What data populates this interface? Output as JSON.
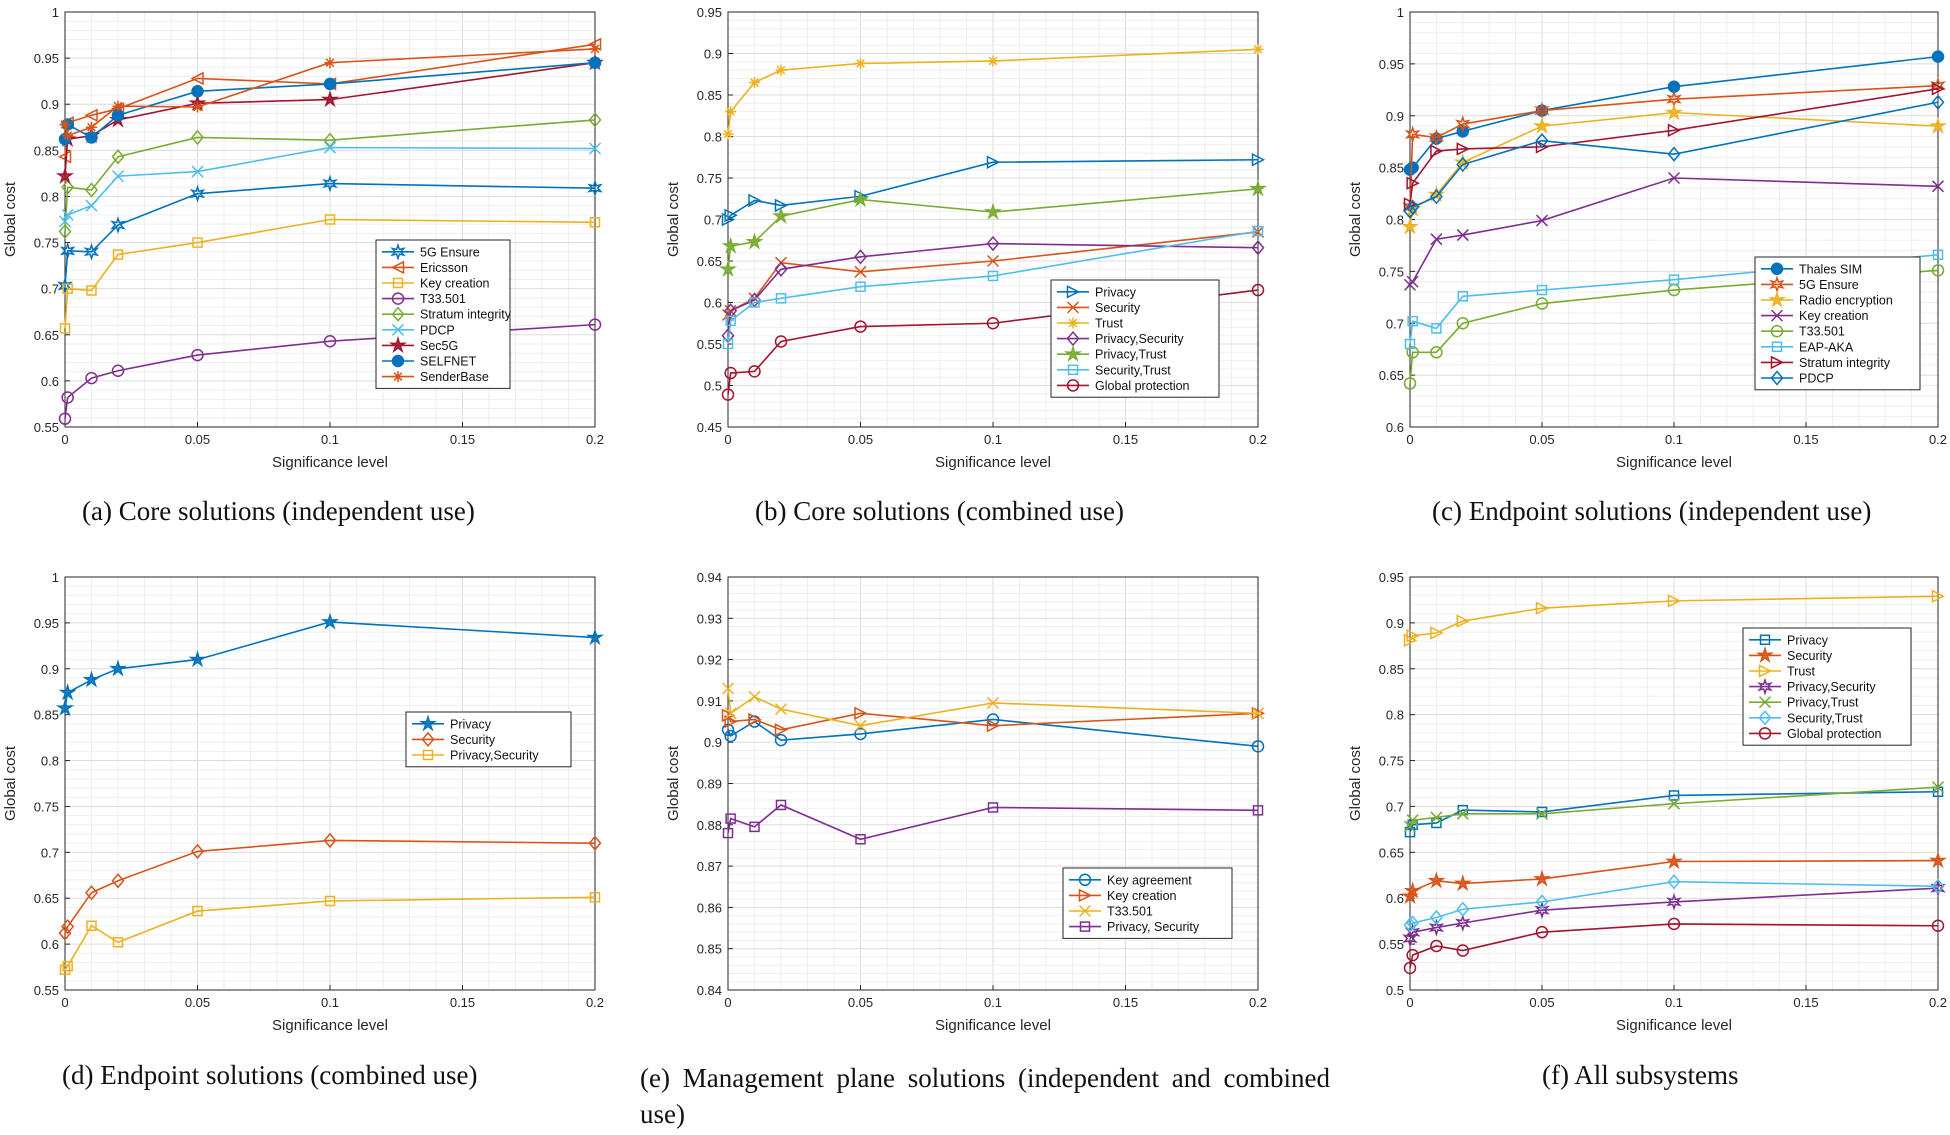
{
  "x_axis": {
    "label": "Significance level",
    "ticks": [
      0,
      0.05,
      0.1,
      0.15,
      0.2
    ],
    "tick_labels": [
      "0",
      "0.05",
      "0.1",
      "0.15",
      "0.2"
    ]
  },
  "y_axis_label": "Global cost",
  "colors": {
    "blue": "#0072BD",
    "orange": "#D95319",
    "yellow": "#EDB120",
    "purple": "#7E2F8E",
    "green": "#77AC30",
    "cyan": "#4DBEEE",
    "red": "#A2142F"
  },
  "chart_data": [
    {
      "type": "line",
      "caption": "(a) Core solutions (independent use)",
      "ylim": [
        0.55,
        1
      ],
      "yticks": [
        0.55,
        0.6,
        0.65,
        0.7,
        0.75,
        0.8,
        0.85,
        0.9,
        0.95,
        1
      ],
      "ytick_labels": [
        "0.55",
        "0.6",
        "0.65",
        "0.7",
        "0.75",
        "0.8",
        "0.85",
        "0.9",
        "0.95",
        "1"
      ],
      "x": [
        0,
        0.001,
        0.01,
        0.02,
        0.05,
        0.1,
        0.2
      ],
      "series": [
        {
          "name": "5G Ensure",
          "color": "blue",
          "marker": "star6",
          "values": [
            0.703,
            0.741,
            0.74,
            0.769,
            0.803,
            0.814,
            0.809
          ]
        },
        {
          "name": "Ericsson",
          "color": "orange",
          "marker": "triangle-left",
          "values": [
            0.843,
            0.88,
            0.888,
            0.895,
            0.928,
            0.922,
            0.965
          ]
        },
        {
          "name": "Key creation",
          "color": "yellow",
          "marker": "square",
          "values": [
            0.657,
            0.7,
            0.698,
            0.737,
            0.75,
            0.775,
            0.772
          ]
        },
        {
          "name": "T33.501",
          "color": "purple",
          "marker": "circle",
          "values": [
            0.559,
            0.582,
            0.603,
            0.611,
            0.628,
            0.643,
            0.661
          ]
        },
        {
          "name": "Stratum integrity",
          "color": "green",
          "marker": "diamond",
          "values": [
            0.762,
            0.81,
            0.807,
            0.843,
            0.864,
            0.861,
            0.883
          ]
        },
        {
          "name": "PDCP",
          "color": "cyan",
          "marker": "x",
          "values": [
            0.773,
            0.78,
            0.79,
            0.822,
            0.827,
            0.853,
            0.852
          ]
        },
        {
          "name": "Sec5G",
          "color": "red",
          "marker": "star5",
          "values": [
            0.822,
            0.862,
            0.866,
            0.883,
            0.901,
            0.905,
            0.945
          ]
        },
        {
          "name": "SELFNET",
          "color": "blue",
          "marker": "dot",
          "values": [
            0.862,
            0.878,
            0.864,
            0.888,
            0.914,
            0.922,
            0.945
          ]
        },
        {
          "name": "SenderBase",
          "color": "orange",
          "marker": "asterisk",
          "values": [
            0.878,
            0.866,
            0.875,
            0.898,
            0.897,
            0.945,
            0.96
          ]
        }
      ]
    },
    {
      "type": "line",
      "caption": "(b) Core solutions (combined use)",
      "ylim": [
        0.45,
        0.95
      ],
      "yticks": [
        0.45,
        0.5,
        0.55,
        0.6,
        0.65,
        0.7,
        0.75,
        0.8,
        0.85,
        0.9,
        0.95
      ],
      "ytick_labels": [
        "0.45",
        "0.5",
        "0.55",
        "0.6",
        "0.65",
        "0.7",
        "0.75",
        "0.8",
        "0.85",
        "0.9",
        "0.95"
      ],
      "x": [
        0,
        0.001,
        0.01,
        0.02,
        0.05,
        0.1,
        0.2
      ],
      "series": [
        {
          "name": "Privacy",
          "color": "blue",
          "marker": "triangle-right",
          "values": [
            0.7,
            0.705,
            0.723,
            0.717,
            0.728,
            0.769,
            0.772
          ]
        },
        {
          "name": "Security",
          "color": "orange",
          "marker": "x",
          "values": [
            0.585,
            0.59,
            0.605,
            0.648,
            0.637,
            0.65,
            0.685
          ]
        },
        {
          "name": "Trust",
          "color": "yellow",
          "marker": "asterisk",
          "values": [
            0.803,
            0.83,
            0.865,
            0.88,
            0.888,
            0.891,
            0.905
          ]
        },
        {
          "name": "Privacy,Security",
          "color": "purple",
          "marker": "diamond",
          "values": [
            0.56,
            0.59,
            0.603,
            0.64,
            0.655,
            0.671,
            0.666
          ]
        },
        {
          "name": "Privacy,Trust",
          "color": "green",
          "marker": "star5",
          "values": [
            0.64,
            0.668,
            0.673,
            0.704,
            0.724,
            0.709,
            0.737
          ]
        },
        {
          "name": "Security,Trust",
          "color": "cyan",
          "marker": "square",
          "values": [
            0.55,
            0.578,
            0.6,
            0.605,
            0.619,
            0.632,
            0.686
          ]
        },
        {
          "name": "Global protection",
          "color": "red",
          "marker": "circle",
          "values": [
            0.489,
            0.515,
            0.517,
            0.553,
            0.571,
            0.575,
            0.615
          ]
        }
      ]
    },
    {
      "type": "line",
      "caption": "(c) Endpoint solutions (independent use)",
      "ylim": [
        0.6,
        1
      ],
      "yticks": [
        0.6,
        0.65,
        0.7,
        0.75,
        0.8,
        0.85,
        0.9,
        0.95,
        1
      ],
      "ytick_labels": [
        "0.6",
        "0.65",
        "0.7",
        "0.75",
        "0.8",
        "0.85",
        "0.9",
        "0.95",
        "1"
      ],
      "x": [
        0,
        0.001,
        0.01,
        0.02,
        0.05,
        0.1,
        0.2
      ],
      "series": [
        {
          "name": "Thales SIM",
          "color": "blue",
          "marker": "dot",
          "values": [
            0.848,
            0.85,
            0.878,
            0.885,
            0.905,
            0.928,
            0.957
          ]
        },
        {
          "name": "5G Ensure",
          "color": "orange",
          "marker": "star6",
          "values": [
            0.812,
            0.882,
            0.879,
            0.892,
            0.905,
            0.916,
            0.929
          ]
        },
        {
          "name": "Radio encryption",
          "color": "yellow",
          "marker": "star5",
          "values": [
            0.793,
            0.81,
            0.824,
            0.855,
            0.89,
            0.903,
            0.89
          ]
        },
        {
          "name": "Key creation",
          "color": "purple",
          "marker": "x",
          "values": [
            0.737,
            0.74,
            0.781,
            0.785,
            0.799,
            0.84,
            0.832
          ]
        },
        {
          "name": "T33.501",
          "color": "green",
          "marker": "circle",
          "values": [
            0.642,
            0.672,
            0.672,
            0.7,
            0.719,
            0.732,
            0.751
          ]
        },
        {
          "name": "EAP-AKA",
          "color": "cyan",
          "marker": "square",
          "values": [
            0.68,
            0.702,
            0.695,
            0.726,
            0.732,
            0.742,
            0.766
          ]
        },
        {
          "name": "Stratum integrity",
          "color": "red",
          "marker": "triangle-right",
          "values": [
            0.815,
            0.835,
            0.866,
            0.868,
            0.87,
            0.886,
            0.926
          ]
        },
        {
          "name": "PDCP",
          "color": "blue",
          "marker": "diamond",
          "values": [
            0.808,
            0.812,
            0.822,
            0.853,
            0.876,
            0.863,
            0.913
          ]
        }
      ]
    },
    {
      "type": "line",
      "caption": "(d) Endpoint solutions (combined use)",
      "ylim": [
        0.55,
        1
      ],
      "yticks": [
        0.55,
        0.6,
        0.65,
        0.7,
        0.75,
        0.8,
        0.85,
        0.9,
        0.95,
        1
      ],
      "ytick_labels": [
        "0.55",
        "0.6",
        "0.65",
        "0.7",
        "0.75",
        "0.8",
        "0.85",
        "0.9",
        "0.95",
        "1"
      ],
      "x": [
        0,
        0.001,
        0.01,
        0.02,
        0.05,
        0.1,
        0.2
      ],
      "series": [
        {
          "name": "Privacy",
          "color": "blue",
          "marker": "star5",
          "values": [
            0.857,
            0.874,
            0.888,
            0.9,
            0.91,
            0.951,
            0.934
          ]
        },
        {
          "name": "Security",
          "color": "orange",
          "marker": "diamond",
          "values": [
            0.612,
            0.619,
            0.656,
            0.669,
            0.701,
            0.713,
            0.71
          ]
        },
        {
          "name": "Privacy,Security",
          "color": "yellow",
          "marker": "square",
          "values": [
            0.572,
            0.576,
            0.62,
            0.602,
            0.636,
            0.647,
            0.651
          ]
        }
      ]
    },
    {
      "type": "line",
      "caption": "(e) Management plane solutions (independent and combined use)",
      "ylim": [
        0.84,
        0.94
      ],
      "yticks": [
        0.84,
        0.85,
        0.86,
        0.87,
        0.88,
        0.89,
        0.9,
        0.91,
        0.92,
        0.93,
        0.94
      ],
      "ytick_labels": [
        "0.84",
        "0.85",
        "0.86",
        "0.87",
        "0.88",
        "0.89",
        "0.9",
        "0.91",
        "0.92",
        "0.93",
        "0.94"
      ],
      "x": [
        0,
        0.001,
        0.01,
        0.02,
        0.05,
        0.1,
        0.2
      ],
      "series": [
        {
          "name": "Key agreement",
          "color": "blue",
          "marker": "circle",
          "values": [
            0.903,
            0.9015,
            0.905,
            0.9005,
            0.902,
            0.9055,
            0.899
          ]
        },
        {
          "name": "Key creation",
          "color": "orange",
          "marker": "triangle-right",
          "values": [
            0.9065,
            0.905,
            0.9055,
            0.903,
            0.907,
            0.904,
            0.907
          ]
        },
        {
          "name": "T33.501",
          "color": "yellow",
          "marker": "x",
          "values": [
            0.913,
            0.907,
            0.911,
            0.908,
            0.904,
            0.9095,
            0.907
          ]
        },
        {
          "name": "Privacy, Security",
          "color": "purple",
          "marker": "square",
          "values": [
            0.878,
            0.8815,
            0.8795,
            0.8848,
            0.8765,
            0.8842,
            0.8835
          ]
        }
      ]
    },
    {
      "type": "line",
      "caption": "(f) All subsystems",
      "ylim": [
        0.5,
        0.95
      ],
      "yticks": [
        0.5,
        0.55,
        0.6,
        0.65,
        0.7,
        0.75,
        0.8,
        0.85,
        0.9,
        0.95
      ],
      "ytick_labels": [
        "0.5",
        "0.55",
        "0.6",
        "0.65",
        "0.7",
        "0.75",
        "0.8",
        "0.85",
        "0.9",
        "0.95"
      ],
      "x": [
        0,
        0.001,
        0.01,
        0.02,
        0.05,
        0.1,
        0.2
      ],
      "series": [
        {
          "name": "Privacy",
          "color": "blue",
          "marker": "square",
          "values": [
            0.672,
            0.68,
            0.682,
            0.696,
            0.694,
            0.712,
            0.716
          ]
        },
        {
          "name": "Security",
          "color": "orange",
          "marker": "star5",
          "values": [
            0.602,
            0.608,
            0.619,
            0.616,
            0.621,
            0.64,
            0.641
          ]
        },
        {
          "name": "Trust",
          "color": "yellow",
          "marker": "triangle-right",
          "values": [
            0.881,
            0.886,
            0.889,
            0.902,
            0.916,
            0.924,
            0.929
          ]
        },
        {
          "name": "Privacy,Security",
          "color": "purple",
          "marker": "star6",
          "values": [
            0.556,
            0.563,
            0.568,
            0.573,
            0.587,
            0.596,
            0.611
          ]
        },
        {
          "name": "Privacy,Trust",
          "color": "green",
          "marker": "x",
          "values": [
            0.678,
            0.685,
            0.688,
            0.692,
            0.692,
            0.703,
            0.721
          ]
        },
        {
          "name": "Security,Trust",
          "color": "cyan",
          "marker": "diamond",
          "values": [
            0.571,
            0.573,
            0.579,
            0.588,
            0.596,
            0.618,
            0.613
          ]
        },
        {
          "name": "Global protection",
          "color": "red",
          "marker": "circle",
          "values": [
            0.524,
            0.538,
            0.548,
            0.543,
            0.563,
            0.572,
            0.57
          ]
        }
      ]
    }
  ]
}
